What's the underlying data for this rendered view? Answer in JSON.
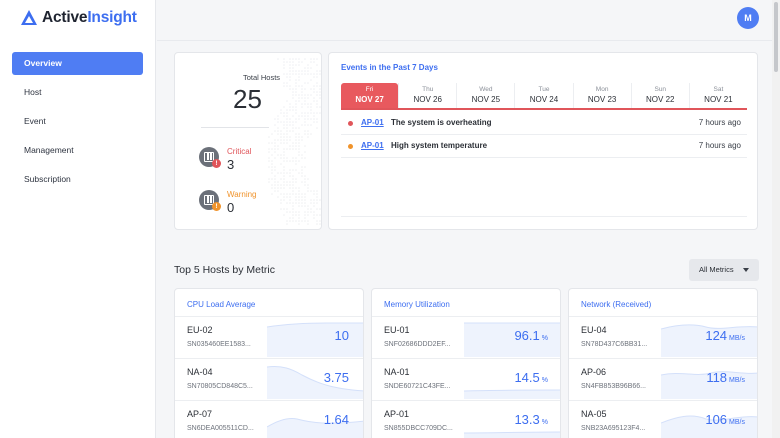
{
  "app": {
    "name_part1": "Active",
    "name_part2": "Insight",
    "accent": "#3d6ef0"
  },
  "sidebar": {
    "items": [
      {
        "label": "Overview",
        "active": true
      },
      {
        "label": "Host"
      },
      {
        "label": "Event"
      },
      {
        "label": "Management"
      },
      {
        "label": "Subscription"
      }
    ]
  },
  "user": {
    "avatar_initial": "M"
  },
  "summary": {
    "total_label": "Total Hosts",
    "total_value": "25",
    "critical_label": "Critical",
    "critical_value": "3",
    "critical_color": "#e0555a",
    "warning_label": "Warning",
    "warning_value": "0",
    "warning_color": "#f0932b"
  },
  "events": {
    "title": "Events in the Past 7 Days",
    "days": [
      {
        "dow": "Fri",
        "date": "NOV 27",
        "active": true
      },
      {
        "dow": "Thu",
        "date": "NOV 26"
      },
      {
        "dow": "Wed",
        "date": "NOV 25"
      },
      {
        "dow": "Tue",
        "date": "NOV 24"
      },
      {
        "dow": "Mon",
        "date": "NOV 23"
      },
      {
        "dow": "Sun",
        "date": "NOV 22"
      },
      {
        "dow": "Sat",
        "date": "NOV 21"
      }
    ],
    "rows": [
      {
        "severity": "critical",
        "host": "AP-01",
        "message": "The system is overheating",
        "time": "7 hours ago"
      },
      {
        "severity": "warning",
        "host": "AP-01",
        "message": "High system temperature",
        "time": "7 hours ago"
      }
    ]
  },
  "top_hosts": {
    "title": "Top 5 Hosts by Metric",
    "filter_label": "All Metrics",
    "metrics": [
      {
        "title": "CPU Load Average",
        "rows": [
          {
            "host": "EU-02",
            "sn": "SN035460EE1583...",
            "value": "10",
            "unit": ""
          },
          {
            "host": "NA-04",
            "sn": "SN70805CD848C5...",
            "value": "3.75",
            "unit": ""
          },
          {
            "host": "AP-07",
            "sn": "SN6DEA005511CD...",
            "value": "1.64",
            "unit": ""
          }
        ]
      },
      {
        "title": "Memory Utilization",
        "rows": [
          {
            "host": "EU-01",
            "sn": "SNF02686DDD2EF...",
            "value": "96.1",
            "unit": "%"
          },
          {
            "host": "NA-01",
            "sn": "SNDE60721C43FE...",
            "value": "14.5",
            "unit": "%"
          },
          {
            "host": "AP-01",
            "sn": "SN855DBCC709DC...",
            "value": "13.3",
            "unit": "%"
          }
        ]
      },
      {
        "title": "Network (Received)",
        "rows": [
          {
            "host": "EU-04",
            "sn": "SN78D437C6BB31...",
            "value": "124",
            "unit": "MB/s"
          },
          {
            "host": "AP-06",
            "sn": "SN4FB853B96B66...",
            "value": "118",
            "unit": "MB/s"
          },
          {
            "host": "NA-05",
            "sn": "SNB23A695123F4...",
            "value": "106",
            "unit": "MB/s"
          }
        ]
      }
    ]
  }
}
